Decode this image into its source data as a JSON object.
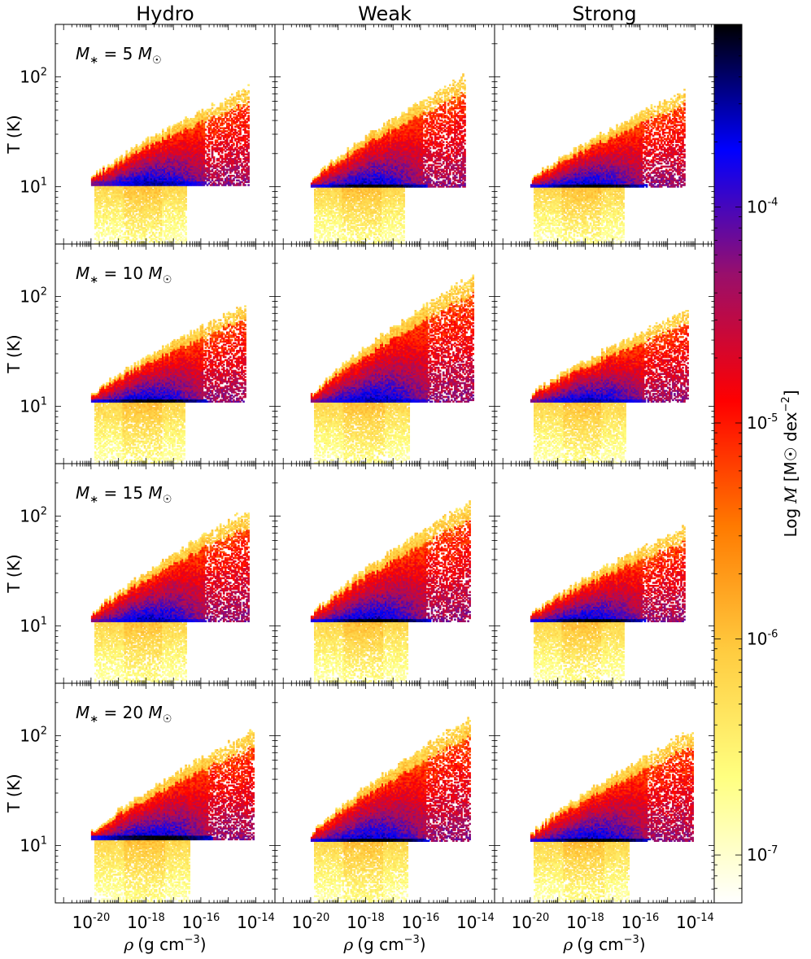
{
  "chart_data": {
    "type": "heatmap",
    "columns": [
      "Hydro",
      "Weak",
      "Strong"
    ],
    "row_labels": [
      "M* = 5 M☉",
      "M* = 10 M☉",
      "M* = 15 M☉",
      "M* = 20 M☉"
    ],
    "row_masses": [
      "5",
      "10",
      "15",
      "20"
    ],
    "ylabel": "T (K)",
    "xlabel_prefix": "ρ",
    "xlabel_units": "(g cm",
    "xlabel_exp": "−3",
    "xlabel_close": ")",
    "x_scale": "log",
    "x_range": [
      5e-22,
      5e-14
    ],
    "x_ticks": [
      {
        "base": "10",
        "exp": "-20",
        "value": -20
      },
      {
        "base": "10",
        "exp": "-18",
        "value": -18
      },
      {
        "base": "10",
        "exp": "-16",
        "value": -16
      },
      {
        "base": "10",
        "exp": "-14",
        "value": -14
      }
    ],
    "y_scale": "log",
    "y_range": [
      3,
      300
    ],
    "y_ticks": [
      {
        "base": "10",
        "exp": "1",
        "value": 1
      },
      {
        "base": "10",
        "exp": "2",
        "value": 2
      }
    ],
    "colorbar": {
      "label_log": "Log",
      "label_var": "M",
      "label_units": "[M☉ dex",
      "label_exp": "−2",
      "label_close": "]",
      "scale": "log",
      "range": [
        6e-08,
        0.0007
      ],
      "ticks": [
        {
          "base": "10",
          "exp": "-7",
          "value": -7
        },
        {
          "base": "10",
          "exp": "-6",
          "value": -6
        },
        {
          "base": "10",
          "exp": "-5",
          "value": -5
        },
        {
          "base": "10",
          "exp": "-4",
          "value": -4
        }
      ],
      "colormap": [
        "#ffffff",
        "#ffff80",
        "#ffcc40",
        "#ff7a00",
        "#ff0000",
        "#9a0f6a",
        "#0000ff",
        "#000000"
      ]
    },
    "panels": [
      {
        "col": "Hydro",
        "mass": 5,
        "floor_T": 10.5,
        "rho_min_exp": -20,
        "rho_max_exp": -14.3,
        "Tmax": 70,
        "peak": "blue"
      },
      {
        "col": "Weak",
        "mass": 5,
        "floor_T": 10,
        "rho_min_exp": -20,
        "rho_max_exp": -14.4,
        "Tmax": 90,
        "peak": "black"
      },
      {
        "col": "Strong",
        "mass": 5,
        "floor_T": 10,
        "rho_min_exp": -20,
        "rho_max_exp": -14.4,
        "Tmax": 65,
        "peak": "black"
      },
      {
        "col": "Hydro",
        "mass": 10,
        "floor_T": 11,
        "rho_min_exp": -20,
        "rho_max_exp": -14.4,
        "Tmax": 75,
        "peak": "black"
      },
      {
        "col": "Weak",
        "mass": 10,
        "floor_T": 11,
        "rho_min_exp": -20,
        "rho_max_exp": -14.1,
        "Tmax": 140,
        "peak": "blue"
      },
      {
        "col": "Strong",
        "mass": 10,
        "floor_T": 11,
        "rho_min_exp": -20,
        "rho_max_exp": -14.3,
        "Tmax": 65,
        "peak": "blue"
      },
      {
        "col": "Hydro",
        "mass": 15,
        "floor_T": 11,
        "rho_min_exp": -20,
        "rho_max_exp": -14.3,
        "Tmax": 100,
        "peak": "blue"
      },
      {
        "col": "Weak",
        "mass": 15,
        "floor_T": 11,
        "rho_min_exp": -20,
        "rho_max_exp": -14.2,
        "Tmax": 120,
        "peak": "black"
      },
      {
        "col": "Strong",
        "mass": 15,
        "floor_T": 11,
        "rho_min_exp": -20,
        "rho_max_exp": -14.4,
        "Tmax": 70,
        "peak": "black"
      },
      {
        "col": "Hydro",
        "mass": 20,
        "floor_T": 11.5,
        "rho_min_exp": -20,
        "rho_max_exp": -14.1,
        "Tmax": 100,
        "peak": "black"
      },
      {
        "col": "Weak",
        "mass": 20,
        "floor_T": 11,
        "rho_min_exp": -20,
        "rho_max_exp": -14.2,
        "Tmax": 130,
        "peak": "black"
      },
      {
        "col": "Strong",
        "mass": 20,
        "floor_T": 11,
        "rho_min_exp": -20,
        "rho_max_exp": -14.1,
        "Tmax": 100,
        "peak": "black"
      }
    ]
  }
}
